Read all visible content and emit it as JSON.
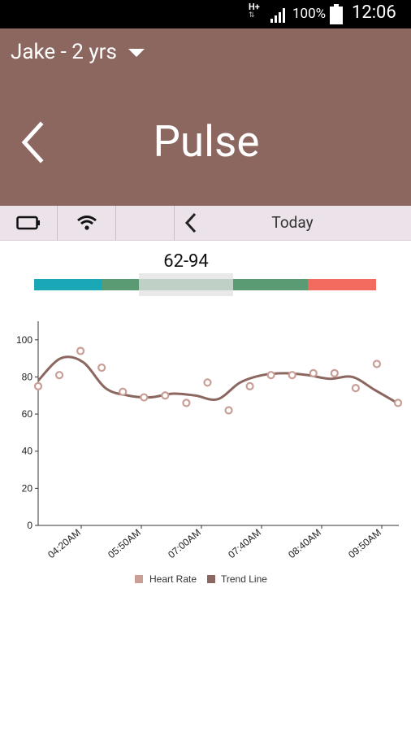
{
  "status_bar": {
    "network": "H+",
    "battery_percent": "100%",
    "time": "12:06"
  },
  "header": {
    "profile_name": "Jake - 2 yrs",
    "title": "Pulse"
  },
  "toolbar": {
    "date_label": "Today"
  },
  "range": {
    "label": "62-94",
    "segments_colors": [
      "#1aa7b6",
      "#5a9b73",
      "#5a9b73",
      "#f36b5f"
    ]
  },
  "chart_data": {
    "type": "line",
    "yticks": [
      "0",
      "20",
      "40",
      "60",
      "80",
      "100"
    ],
    "ylim": [
      0,
      110
    ],
    "xtick_labels": [
      "04:20AM",
      "05:50AM",
      "07:00AM",
      "07:40AM",
      "08:40AM",
      "09:50AM"
    ],
    "series": [
      {
        "name": "Heart Rate",
        "kind": "scatter",
        "color": "#c99e96",
        "values": [
          75,
          81,
          94,
          85,
          72,
          69,
          70,
          66,
          77,
          62,
          75,
          81,
          81,
          82,
          82,
          74,
          87,
          66
        ]
      },
      {
        "name": "Trend Line",
        "kind": "line",
        "color": "#8b6760",
        "values": [
          78,
          90,
          88,
          74,
          70,
          69,
          71,
          70,
          68,
          77,
          81,
          82,
          81,
          79,
          80,
          73,
          66
        ]
      }
    ],
    "legend": [
      "Heart Rate",
      "Trend Line"
    ]
  }
}
